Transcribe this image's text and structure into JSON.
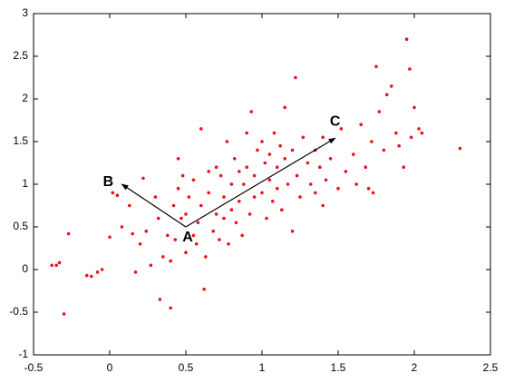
{
  "chart_data": {
    "type": "scatter",
    "xlim": [
      -0.5,
      2.5
    ],
    "xticks": [
      -0.5,
      0,
      0.5,
      1,
      1.5,
      2,
      2.5
    ],
    "ylim": [
      -1,
      3
    ],
    "yticks": [
      -1,
      -0.5,
      0,
      0.5,
      1,
      1.5,
      2,
      2.5,
      3
    ],
    "color": "#e8141b",
    "x": [
      -0.38,
      -0.35,
      -0.33,
      -0.3,
      -0.27,
      -0.15,
      -0.12,
      -0.08,
      -0.05,
      0.0,
      0.02,
      0.05,
      0.08,
      0.13,
      0.15,
      0.17,
      0.2,
      0.22,
      0.24,
      0.27,
      0.3,
      0.32,
      0.33,
      0.35,
      0.38,
      0.4,
      0.4,
      0.42,
      0.43,
      0.45,
      0.45,
      0.47,
      0.48,
      0.5,
      0.5,
      0.52,
      0.55,
      0.55,
      0.57,
      0.58,
      0.6,
      0.6,
      0.62,
      0.63,
      0.65,
      0.65,
      0.68,
      0.7,
      0.7,
      0.72,
      0.73,
      0.75,
      0.75,
      0.77,
      0.78,
      0.8,
      0.8,
      0.82,
      0.83,
      0.85,
      0.85,
      0.87,
      0.88,
      0.9,
      0.9,
      0.92,
      0.93,
      0.95,
      0.95,
      0.97,
      1.0,
      1.0,
      1.02,
      1.03,
      1.05,
      1.05,
      1.07,
      1.08,
      1.1,
      1.1,
      1.12,
      1.13,
      1.15,
      1.15,
      1.17,
      1.2,
      1.2,
      1.22,
      1.23,
      1.25,
      1.27,
      1.3,
      1.32,
      1.35,
      1.35,
      1.38,
      1.4,
      1.4,
      1.42,
      1.45,
      1.5,
      1.52,
      1.55,
      1.6,
      1.62,
      1.65,
      1.68,
      1.7,
      1.72,
      1.73,
      1.75,
      1.77,
      1.8,
      1.82,
      1.85,
      1.88,
      1.9,
      1.93,
      1.95,
      1.97,
      1.98,
      2.0,
      2.03,
      2.05,
      2.3
    ],
    "values": [
      0.05,
      0.05,
      0.08,
      -0.52,
      0.42,
      -0.07,
      -0.08,
      -0.03,
      0.0,
      0.38,
      0.9,
      0.87,
      0.5,
      0.75,
      0.42,
      -0.03,
      0.3,
      1.07,
      0.45,
      0.05,
      0.85,
      0.6,
      -0.35,
      0.15,
      0.4,
      -0.45,
      0.1,
      0.75,
      0.35,
      0.95,
      1.3,
      0.6,
      1.1,
      0.2,
      0.65,
      0.85,
      0.4,
      1.05,
      0.3,
      0.55,
      1.65,
      0.75,
      -0.23,
      0.15,
      0.9,
      1.15,
      0.45,
      1.2,
      0.65,
      0.35,
      1.1,
      0.85,
      0.6,
      1.5,
      0.3,
      1.0,
      0.7,
      1.3,
      0.55,
      1.15,
      0.8,
      0.4,
      1.0,
      1.6,
      1.2,
      0.65,
      1.85,
      1.1,
      0.85,
      1.4,
      1.5,
      0.9,
      1.25,
      0.6,
      1.35,
      1.05,
      0.8,
      1.6,
      1.2,
      0.95,
      1.45,
      0.7,
      1.9,
      1.3,
      1.0,
      1.4,
      0.45,
      2.25,
      1.1,
      0.85,
      1.55,
      1.25,
      1.0,
      1.4,
      0.9,
      1.2,
      1.55,
      0.75,
      1.05,
      1.3,
      0.95,
      1.65,
      1.15,
      1.35,
      1.0,
      1.7,
      1.2,
      0.95,
      1.5,
      0.9,
      2.38,
      1.85,
      1.4,
      2.05,
      2.15,
      1.6,
      1.45,
      1.2,
      2.7,
      2.35,
      1.55,
      1.9,
      1.65,
      1.6,
      1.42
    ],
    "annotations": [
      {
        "text": "A",
        "x": 0.5,
        "y": 0.5
      },
      {
        "text": "B",
        "x": 0.08,
        "y": 1.0
      },
      {
        "text": "C",
        "x": 1.48,
        "y": 1.54
      }
    ]
  }
}
